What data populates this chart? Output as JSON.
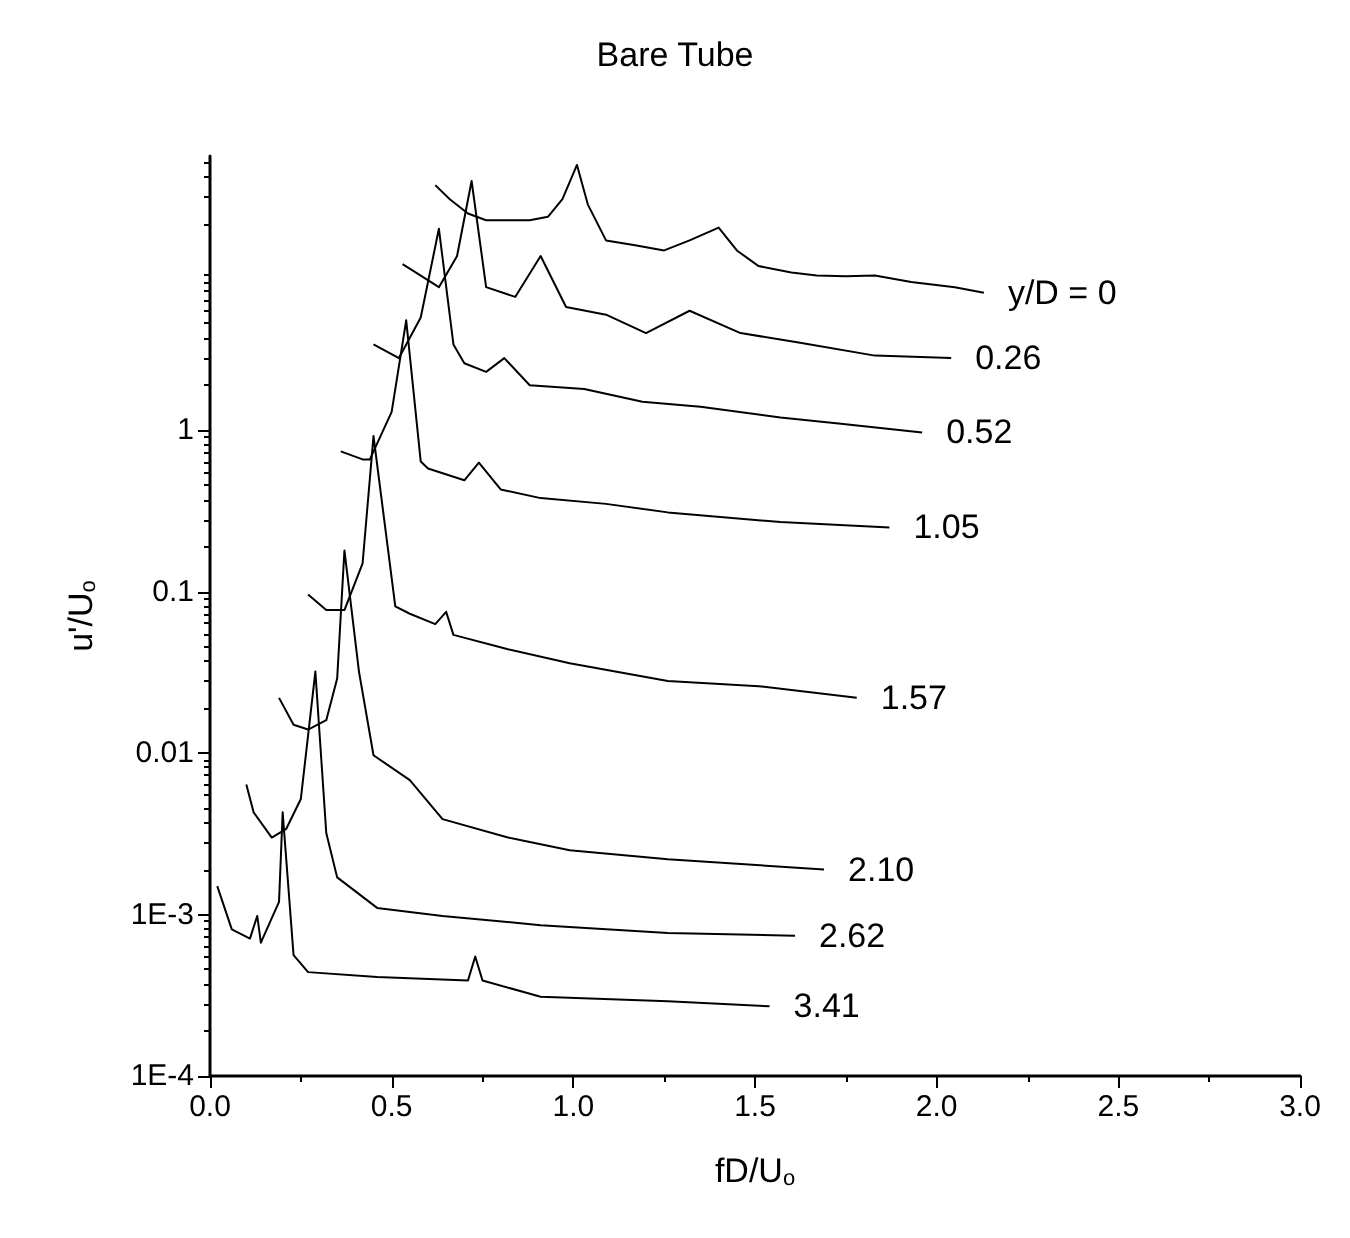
{
  "chart_data": {
    "type": "line",
    "title": "Bare Tube",
    "xlabel": "fD/U$_{o}$",
    "ylabel": "u'/U$_{o}$",
    "log": "y",
    "grid": false,
    "legend": false,
    "marker": "none",
    "line_style": "solid",
    "xlim": [
      0,
      3
    ],
    "xticks": [
      {
        "value": 0,
        "label": "0.0"
      },
      {
        "value": 0.5,
        "label": "0.5"
      },
      {
        "value": 1,
        "label": "1.0"
      },
      {
        "value": 1.5,
        "label": "1.5"
      },
      {
        "value": 2,
        "label": "2.0"
      },
      {
        "value": 2.5,
        "label": "2.5"
      },
      {
        "value": 3,
        "label": "3.0"
      }
    ],
    "ylim": [
      0.0001,
      50
    ],
    "yticks": [
      {
        "value": 0.0001,
        "label": "1E-4"
      },
      {
        "value": 0.001,
        "label": "1E-3"
      },
      0.01,
      0.1,
      1
    ],
    "series": [
      {
        "name": "y/D = 0",
        "color": "#000000",
        "x": [
          0.62,
          0.66,
          0.71,
          0.76,
          0.82,
          0.88,
          0.93,
          0.97,
          1.01,
          1.04,
          1.09,
          1.17,
          1.25,
          1.32,
          1.4,
          1.45,
          1.51,
          1.6,
          1.67,
          1.75,
          1.83,
          1.93,
          2.05,
          2.13
        ],
        "values": [
          33,
          27,
          22,
          20,
          20,
          20,
          21,
          27,
          44,
          25,
          15,
          14,
          13,
          15,
          18,
          13,
          10.4,
          9.5,
          9.1,
          9.0,
          9.1,
          8.3,
          7.7,
          7.1
        ]
      },
      {
        "name": "0.26",
        "color": "#000000",
        "x": [
          0.53,
          0.63,
          0.68,
          0.72,
          0.76,
          0.84,
          0.91,
          0.98,
          1.09,
          1.2,
          1.32,
          1.46,
          1.62,
          1.83,
          2.04
        ],
        "values": [
          10.7,
          7.7,
          12,
          35,
          7.7,
          6.7,
          12,
          5.8,
          5.2,
          4.0,
          5.5,
          4.0,
          3.5,
          2.9,
          2.8
        ]
      },
      {
        "name": "0.52",
        "color": "#000000",
        "x": [
          0.45,
          0.52,
          0.58,
          0.63,
          0.67,
          0.7,
          0.76,
          0.81,
          0.88,
          1.03,
          1.19,
          1.35,
          1.57,
          1.73,
          1.96
        ],
        "values": [
          3.4,
          2.8,
          5,
          17.7,
          3.4,
          2.6,
          2.3,
          2.8,
          1.9,
          1.8,
          1.5,
          1.4,
          1.2,
          1.1,
          0.97
        ]
      },
      {
        "name": "1.05",
        "color": "#000000",
        "x": [
          0.36,
          0.42,
          0.44,
          0.5,
          0.54,
          0.58,
          0.6,
          0.7,
          0.74,
          0.8,
          0.91,
          1.09,
          1.26,
          1.57,
          1.87
        ],
        "values": [
          0.74,
          0.66,
          0.66,
          1.3,
          4.8,
          0.64,
          0.58,
          0.49,
          0.63,
          0.43,
          0.38,
          0.35,
          0.31,
          0.27,
          0.25
        ]
      },
      {
        "name": "1.57",
        "color": "#000000",
        "x": [
          0.27,
          0.32,
          0.37,
          0.42,
          0.45,
          0.51,
          0.55,
          0.62,
          0.65,
          0.67,
          0.82,
          0.99,
          1.26,
          1.51,
          1.78
        ],
        "values": [
          0.096,
          0.077,
          0.077,
          0.15,
          0.92,
          0.081,
          0.073,
          0.063,
          0.075,
          0.054,
          0.044,
          0.036,
          0.028,
          0.026,
          0.022
        ]
      },
      {
        "name": "2.10",
        "color": "#000000",
        "x": [
          0.19,
          0.23,
          0.27,
          0.32,
          0.35,
          0.37,
          0.41,
          0.45,
          0.55,
          0.64,
          0.82,
          0.99,
          1.26,
          1.69
        ],
        "values": [
          0.022,
          0.015,
          0.014,
          0.016,
          0.029,
          0.18,
          0.032,
          0.0097,
          0.0068,
          0.0039,
          0.003,
          0.0025,
          0.0022,
          0.0019
        ]
      },
      {
        "name": "2.62",
        "color": "#000000",
        "x": [
          0.1,
          0.12,
          0.17,
          0.21,
          0.25,
          0.29,
          0.32,
          0.35,
          0.46,
          0.64,
          0.91,
          1.26,
          1.61
        ],
        "values": [
          0.0064,
          0.0043,
          0.003,
          0.0034,
          0.0052,
          0.032,
          0.0032,
          0.0017,
          0.0011,
          0.00098,
          0.00086,
          0.00077,
          0.00074
        ]
      },
      {
        "name": "3.41",
        "color": "#000000",
        "x": [
          0.02,
          0.06,
          0.11,
          0.13,
          0.14,
          0.19,
          0.2,
          0.23,
          0.27,
          0.46,
          0.71,
          0.73,
          0.75,
          0.91,
          1.26,
          1.54
        ],
        "values": [
          0.0015,
          0.00081,
          0.00071,
          0.00098,
          0.00067,
          0.0012,
          0.0043,
          0.00056,
          0.00044,
          0.00041,
          0.00039,
          0.00055,
          0.00039,
          0.00031,
          0.00029,
          0.00027
        ]
      }
    ]
  }
}
